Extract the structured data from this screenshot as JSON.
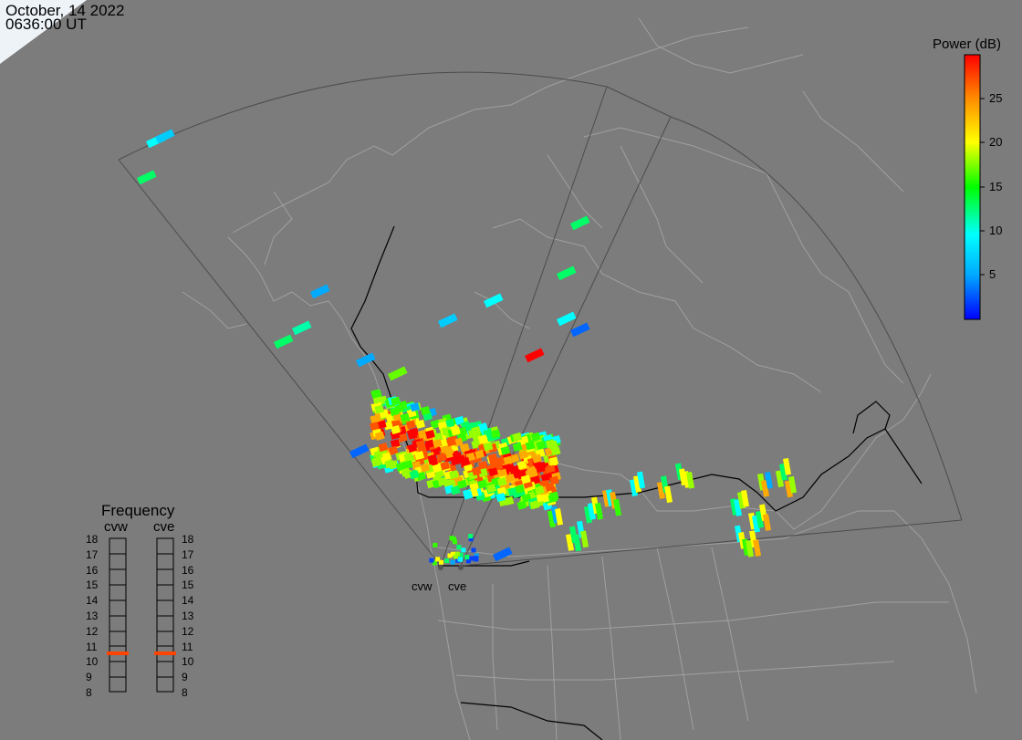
{
  "header": {
    "date": "October, 14 2022",
    "time": "0636:00 UT"
  },
  "colorbar": {
    "title": "Power (dB)",
    "ticks": [
      "5",
      "10",
      "15",
      "20",
      "25"
    ],
    "tick_values": [
      5,
      10,
      15,
      20,
      25
    ],
    "range": [
      0,
      30
    ]
  },
  "frequency": {
    "title": "Frequency",
    "radars": [
      {
        "name": "cvw",
        "value_mhz": 10.5
      },
      {
        "name": "cve",
        "value_mhz": 10.5
      }
    ],
    "ticks": [
      "18",
      "17",
      "16",
      "15",
      "14",
      "13",
      "12",
      "11",
      "10",
      "9",
      "8"
    ],
    "marker_color": "#ff4400"
  },
  "radars": [
    "cvw",
    "cve"
  ],
  "colors": {
    "background": "#7c7c7c",
    "coastline": "#a8a8a8",
    "border": "#000000",
    "fov": "#505050"
  }
}
